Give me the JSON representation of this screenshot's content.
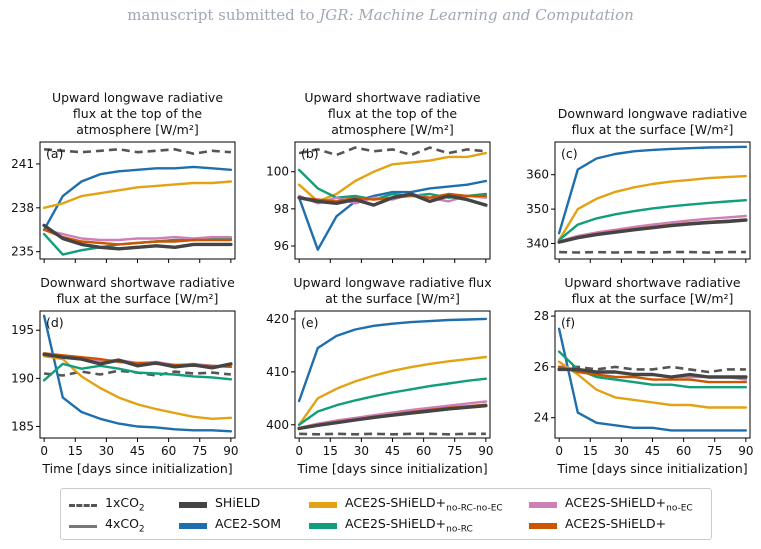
{
  "header": {
    "prefix": "manuscript submitted to ",
    "journal": "JGR: Machine Learning and Computation"
  },
  "colors": {
    "1xCO2": "#555555",
    "4xCO2": "#555555",
    "SHiELD": "#444444",
    "ACE2-SOM": "#1f6fad",
    "ACE2S-SHiELD+no-RC-no-EC": "#e3a214",
    "ACE2S-SHiELD+no-RC": "#119e7a",
    "ACE2S-SHiELD+no-EC": "#cf7fb8",
    "ACE2S-SHiELD+": "#cc5500"
  },
  "legend": {
    "items": [
      {
        "key": "1xCO2",
        "label": "1xCO",
        "sub2": "2",
        "sub": "",
        "style": "dashed"
      },
      {
        "key": "SHiELD",
        "label": "SHiELD",
        "sub2": "",
        "sub": "",
        "style": "thick"
      },
      {
        "key": "ACE2S-SHiELD+no-RC-no-EC",
        "label": "ACE2S-SHiELD+",
        "sub2": "",
        "sub": "no-RC-no-EC",
        "style": "solid"
      },
      {
        "key": "ACE2S-SHiELD+no-EC",
        "label": "ACE2S-SHiELD+",
        "sub2": "",
        "sub": "no-EC",
        "style": "solid"
      },
      {
        "key": "4xCO2",
        "label": "4xCO",
        "sub2": "2",
        "sub": "",
        "style": "solid-gray"
      },
      {
        "key": "ACE2-SOM",
        "label": "ACE2-SOM",
        "sub2": "",
        "sub": "",
        "style": "solid"
      },
      {
        "key": "ACE2S-SHiELD+no-RC",
        "label": "ACE2S-SHiELD+",
        "sub2": "",
        "sub": "no-RC",
        "style": "solid"
      },
      {
        "key": "ACE2S-SHiELD+",
        "label": "ACE2S-SHiELD+",
        "sub2": "",
        "sub": "",
        "style": "solid"
      }
    ]
  },
  "chart_data": [
    {
      "type": "line",
      "panel_label": "(a)",
      "title": [
        "Upward longwave radiative",
        "flux at the top of the",
        "atmosphere [W/m²]"
      ],
      "xlabel": "",
      "ylim": [
        234.5,
        242.5
      ],
      "yticks": [
        235,
        238,
        241
      ],
      "xticks": [],
      "xlim": [
        -2,
        92
      ],
      "series": [
        {
          "key": "1xCO2",
          "style": "dashed",
          "values": [
            242.0,
            241.9,
            241.8,
            241.9,
            242.0,
            241.8,
            241.9,
            242.0,
            241.7,
            241.9,
            241.8
          ]
        },
        {
          "key": "ACE2-SOM",
          "style": "solid",
          "values": [
            236.5,
            238.8,
            239.8,
            240.3,
            240.5,
            240.6,
            240.7,
            240.7,
            240.8,
            240.7,
            240.6
          ]
        },
        {
          "key": "ACE2S-SHiELD+no-RC-no-EC",
          "style": "solid",
          "values": [
            238.0,
            238.3,
            238.8,
            239.0,
            239.2,
            239.4,
            239.5,
            239.6,
            239.7,
            239.7,
            239.8
          ]
        },
        {
          "key": "ACE2S-SHiELD+no-RC",
          "style": "solid",
          "values": [
            236.2,
            234.8,
            235.1,
            235.3,
            235.5,
            235.6,
            235.7,
            235.8,
            235.8,
            235.9,
            235.9
          ]
        },
        {
          "key": "ACE2S-SHiELD+no-EC",
          "style": "solid",
          "values": [
            236.5,
            236.2,
            235.9,
            235.8,
            235.8,
            235.9,
            235.9,
            236.0,
            235.9,
            236.0,
            236.0
          ]
        },
        {
          "key": "ACE2S-SHiELD+",
          "style": "solid",
          "values": [
            236.5,
            236.0,
            235.7,
            235.6,
            235.5,
            235.6,
            235.7,
            235.7,
            235.8,
            235.8,
            235.8
          ]
        },
        {
          "key": "SHiELD",
          "style": "thick",
          "values": [
            236.8,
            235.9,
            235.5,
            235.3,
            235.2,
            235.3,
            235.4,
            235.3,
            235.5,
            235.5,
            235.5
          ]
        }
      ]
    },
    {
      "type": "line",
      "panel_label": "(b)",
      "title": [
        "Upward shortwave radiative",
        "flux at the top of the",
        "atmosphere [W/m²]"
      ],
      "xlabel": "",
      "ylim": [
        95.3,
        101.6
      ],
      "yticks": [
        96,
        98,
        100
      ],
      "xticks": [],
      "xlim": [
        -2,
        92
      ],
      "series": [
        {
          "key": "1xCO2",
          "style": "dashed",
          "values": [
            101.0,
            101.2,
            100.9,
            101.3,
            101.1,
            101.2,
            100.9,
            101.3,
            101.0,
            101.2,
            101.1
          ]
        },
        {
          "key": "ACE2-SOM",
          "style": "solid",
          "values": [
            98.6,
            95.8,
            97.6,
            98.4,
            98.7,
            98.9,
            98.9,
            99.1,
            99.2,
            99.3,
            99.5
          ]
        },
        {
          "key": "ACE2S-SHiELD+no-RC-no-EC",
          "style": "solid",
          "values": [
            99.3,
            98.4,
            98.8,
            99.5,
            100.0,
            100.4,
            100.5,
            100.6,
            100.8,
            100.8,
            101.0
          ]
        },
        {
          "key": "ACE2S-SHiELD+no-RC",
          "style": "solid",
          "values": [
            100.1,
            99.1,
            98.6,
            98.7,
            98.5,
            98.8,
            98.7,
            98.8,
            98.6,
            98.7,
            98.8
          ]
        },
        {
          "key": "ACE2S-SHiELD+no-EC",
          "style": "solid",
          "values": [
            98.7,
            98.3,
            98.6,
            98.3,
            98.6,
            98.5,
            98.8,
            98.6,
            98.4,
            98.7,
            98.6
          ]
        },
        {
          "key": "ACE2S-SHiELD+",
          "style": "solid",
          "values": [
            98.6,
            98.5,
            98.4,
            98.6,
            98.5,
            98.6,
            98.7,
            98.6,
            98.8,
            98.7,
            98.7
          ]
        },
        {
          "key": "SHiELD",
          "style": "thick",
          "values": [
            98.6,
            98.4,
            98.3,
            98.5,
            98.2,
            98.6,
            98.8,
            98.4,
            98.7,
            98.5,
            98.2
          ]
        }
      ]
    },
    {
      "type": "line",
      "panel_label": "(c)",
      "title": [
        "Downward longwave radiative",
        "flux at the surface  [W/m²]"
      ],
      "xlabel": "",
      "ylim": [
        335.5,
        369.5
      ],
      "yticks": [
        340,
        350,
        360
      ],
      "xticks": [],
      "xlim": [
        -2,
        92
      ],
      "series": [
        {
          "key": "1xCO2",
          "style": "dashed",
          "values": [
            337.5,
            337.4,
            337.5,
            337.4,
            337.5,
            337.4,
            337.5,
            337.5,
            337.4,
            337.5,
            337.5
          ]
        },
        {
          "key": "ACE2-SOM",
          "style": "solid",
          "values": [
            343.0,
            361.5,
            364.7,
            366.0,
            366.8,
            367.2,
            367.5,
            367.7,
            367.9,
            368.0,
            368.1
          ]
        },
        {
          "key": "ACE2S-SHiELD+no-RC-no-EC",
          "style": "solid",
          "values": [
            341.0,
            350.0,
            353.0,
            355.0,
            356.3,
            357.3,
            358.0,
            358.5,
            359.0,
            359.3,
            359.6
          ]
        },
        {
          "key": "ACE2S-SHiELD+no-RC",
          "style": "solid",
          "values": [
            341.0,
            345.5,
            347.3,
            348.5,
            349.4,
            350.2,
            350.8,
            351.3,
            351.8,
            352.2,
            352.6
          ]
        },
        {
          "key": "ACE2S-SHiELD+no-EC",
          "style": "solid",
          "values": [
            340.6,
            342.2,
            343.2,
            344.0,
            344.8,
            345.5,
            346.1,
            346.7,
            347.2,
            347.6,
            348.0
          ]
        },
        {
          "key": "ACE2S-SHiELD+",
          "style": "solid",
          "values": [
            340.5,
            341.9,
            342.8,
            343.5,
            344.2,
            344.8,
            345.4,
            345.9,
            346.3,
            346.6,
            347.0
          ]
        },
        {
          "key": "SHiELD",
          "style": "thick",
          "values": [
            340.4,
            341.7,
            342.6,
            343.3,
            344.0,
            344.6,
            345.2,
            345.7,
            346.1,
            346.4,
            346.8
          ]
        }
      ]
    },
    {
      "type": "line",
      "panel_label": "(d)",
      "title": [
        "Downward shortwave radiative",
        "flux at the surface [W/m²]"
      ],
      "xlabel": "Time [days since initialization]",
      "ylim": [
        183.8,
        197.0
      ],
      "yticks": [
        185,
        190,
        195
      ],
      "xticks": [
        0,
        15,
        30,
        45,
        60,
        75,
        90
      ],
      "xlim": [
        -2,
        92
      ],
      "series": [
        {
          "key": "1xCO2",
          "style": "dashed",
          "values": [
            190.5,
            190.3,
            190.7,
            190.4,
            190.8,
            190.6,
            190.3,
            190.7,
            190.5,
            190.6,
            190.4
          ]
        },
        {
          "key": "ACE2-SOM",
          "style": "solid",
          "values": [
            196.5,
            188.0,
            186.5,
            185.8,
            185.3,
            185.0,
            184.9,
            184.7,
            184.6,
            184.6,
            184.5
          ]
        },
        {
          "key": "ACE2S-SHiELD+no-RC-no-EC",
          "style": "solid",
          "values": [
            192.3,
            192.0,
            190.2,
            189.0,
            188.0,
            187.3,
            186.8,
            186.4,
            186.0,
            185.8,
            185.9
          ]
        },
        {
          "key": "ACE2S-SHiELD+no-RC",
          "style": "solid",
          "values": [
            189.8,
            191.5,
            191.0,
            191.3,
            191.0,
            190.6,
            190.5,
            190.4,
            190.2,
            190.1,
            189.9
          ]
        },
        {
          "key": "ACE2S-SHiELD+no-EC",
          "style": "solid",
          "values": [
            192.5,
            192.3,
            192.1,
            191.8,
            191.9,
            191.6,
            191.7,
            191.4,
            191.5,
            191.3,
            191.2
          ]
        },
        {
          "key": "ACE2S-SHiELD+",
          "style": "solid",
          "values": [
            192.6,
            192.4,
            192.2,
            192.0,
            191.7,
            191.6,
            191.5,
            191.4,
            191.3,
            191.3,
            191.2
          ]
        },
        {
          "key": "SHiELD",
          "style": "thick",
          "values": [
            192.5,
            192.2,
            192.0,
            191.5,
            191.9,
            191.3,
            191.6,
            191.2,
            191.4,
            191.1,
            191.5
          ]
        }
      ]
    },
    {
      "type": "line",
      "panel_label": "(e)",
      "title": [
        "Upward longwave radiative flux",
        "at the surface [W/m²]"
      ],
      "xlabel": "Time [days since initialization]",
      "ylim": [
        397.5,
        421.5
      ],
      "yticks": [
        400,
        410,
        420
      ],
      "xticks": [
        0,
        15,
        30,
        45,
        60,
        75,
        90
      ],
      "xlim": [
        -2,
        92
      ],
      "series": [
        {
          "key": "1xCO2",
          "style": "dashed",
          "values": [
            398.3,
            398.2,
            398.3,
            398.2,
            398.3,
            398.2,
            398.3,
            398.3,
            398.2,
            398.3,
            398.3
          ]
        },
        {
          "key": "ACE2-SOM",
          "style": "solid",
          "values": [
            404.5,
            414.5,
            416.8,
            418.0,
            418.7,
            419.1,
            419.4,
            419.6,
            419.8,
            419.9,
            420.0
          ]
        },
        {
          "key": "ACE2S-SHiELD+no-RC-no-EC",
          "style": "solid",
          "values": [
            400.0,
            405.0,
            406.8,
            408.2,
            409.3,
            410.2,
            410.9,
            411.5,
            412.0,
            412.4,
            412.8
          ]
        },
        {
          "key": "ACE2S-SHiELD+no-RC",
          "style": "solid",
          "values": [
            400.0,
            402.5,
            403.7,
            404.6,
            405.4,
            406.1,
            406.7,
            407.3,
            407.8,
            408.3,
            408.7
          ]
        },
        {
          "key": "ACE2S-SHiELD+no-EC",
          "style": "solid",
          "values": [
            399.4,
            400.2,
            400.8,
            401.3,
            401.8,
            402.3,
            402.8,
            403.2,
            403.6,
            404.0,
            404.4
          ]
        },
        {
          "key": "ACE2S-SHiELD+",
          "style": "solid",
          "values": [
            399.4,
            400.0,
            400.5,
            401.0,
            401.5,
            401.9,
            402.4,
            402.8,
            403.2,
            403.5,
            403.8
          ]
        },
        {
          "key": "SHiELD",
          "style": "thick",
          "values": [
            399.3,
            399.9,
            400.4,
            400.9,
            401.4,
            401.8,
            402.2,
            402.6,
            403.0,
            403.3,
            403.6
          ]
        }
      ]
    },
    {
      "type": "line",
      "panel_label": "(f)",
      "title": [
        "Upward shortwave radiative",
        "flux at the surface [W/m²]"
      ],
      "xlabel": "Time [days since initialization]",
      "ylim": [
        23.2,
        28.2
      ],
      "yticks": [
        24,
        26,
        28
      ],
      "xticks": [
        0,
        15,
        30,
        45,
        60,
        75,
        90
      ],
      "xlim": [
        -2,
        92
      ],
      "series": [
        {
          "key": "1xCO2",
          "style": "dashed",
          "values": [
            26.0,
            26.0,
            25.9,
            26.0,
            25.9,
            25.9,
            26.0,
            25.9,
            25.8,
            25.9,
            25.9
          ]
        },
        {
          "key": "ACE2-SOM",
          "style": "solid",
          "values": [
            27.5,
            24.2,
            23.8,
            23.7,
            23.6,
            23.6,
            23.5,
            23.5,
            23.5,
            23.5,
            23.5
          ]
        },
        {
          "key": "ACE2S-SHiELD+no-RC-no-EC",
          "style": "solid",
          "values": [
            26.2,
            25.7,
            25.1,
            24.8,
            24.7,
            24.6,
            24.5,
            24.5,
            24.4,
            24.4,
            24.4
          ]
        },
        {
          "key": "ACE2S-SHiELD+no-RC",
          "style": "solid",
          "values": [
            26.6,
            25.9,
            25.6,
            25.5,
            25.4,
            25.3,
            25.3,
            25.2,
            25.2,
            25.2,
            25.2
          ]
        },
        {
          "key": "ACE2S-SHiELD+no-EC",
          "style": "solid",
          "values": [
            26.0,
            25.9,
            25.8,
            25.8,
            25.7,
            25.7,
            25.6,
            25.6,
            25.6,
            25.6,
            25.5
          ]
        },
        {
          "key": "ACE2S-SHiELD+",
          "style": "solid",
          "values": [
            26.0,
            25.8,
            25.7,
            25.6,
            25.6,
            25.5,
            25.5,
            25.5,
            25.4,
            25.4,
            25.4
          ]
        },
        {
          "key": "SHiELD",
          "style": "thick",
          "values": [
            25.9,
            25.9,
            25.8,
            25.8,
            25.7,
            25.7,
            25.6,
            25.7,
            25.6,
            25.6,
            25.6
          ]
        }
      ]
    }
  ]
}
